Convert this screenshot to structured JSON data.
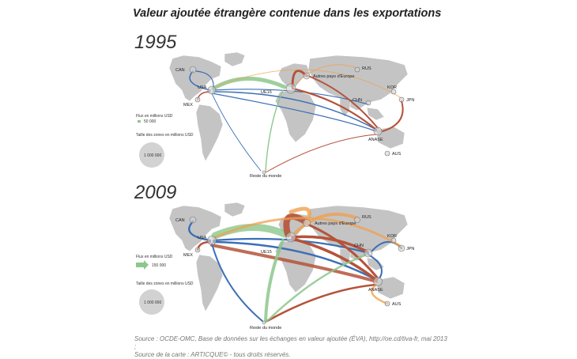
{
  "title": "Valeur ajoutée étrangère contenue dans les exportations",
  "maps": [
    {
      "year": "1995",
      "zones": {
        "can": "CAN",
        "usa": "USA",
        "mex": "MEX",
        "ue15": "UE15",
        "europe": "Autres pays d'Europe",
        "rus": "RUS",
        "chn": "CHN",
        "kor": "KOR",
        "jpn": "JPN",
        "anase": "ANASE",
        "aus": "AUS",
        "rdm": "Reste du monde"
      },
      "legend": {
        "flux_title": "Flux en millions USD",
        "flux_value": "50 000",
        "size_title": "Taille des zones en millions USD",
        "size_value": "1 000 000"
      }
    },
    {
      "year": "2009",
      "zones": {
        "can": "CAN",
        "usa": "USA",
        "mex": "MEX",
        "ue15": "UE15",
        "europe": "Autres pays d'Europe",
        "rus": "RUS",
        "chn": "CHN",
        "kor": "KOR",
        "jpn": "JPN",
        "anase": "ANASE",
        "aus": "AUS",
        "rdm": "Reste du monde"
      },
      "legend": {
        "flux_title": "Flux en millions USD",
        "flux_value": "150 000",
        "size_title": "Taille des zones en millions USD",
        "size_value": "1 000 000"
      }
    }
  ],
  "source_line1": "Source : OCDE-OMC, Base de données sur les échanges en valeur ajoutée (ÉVA), http://oe.cd/tiva-fr, mai 2013 ;",
  "source_line2": "Source de la carte : ARTICQUE© - tous droits réservés.",
  "colors": {
    "land": "#c4c4c4",
    "americas_flow": "#3b6fb6",
    "europe_flow": "#b5533a",
    "asia_flow": "#f0a050",
    "rdm_flow": "#8cc78c",
    "zone_circle": "#d2d2d2"
  }
}
